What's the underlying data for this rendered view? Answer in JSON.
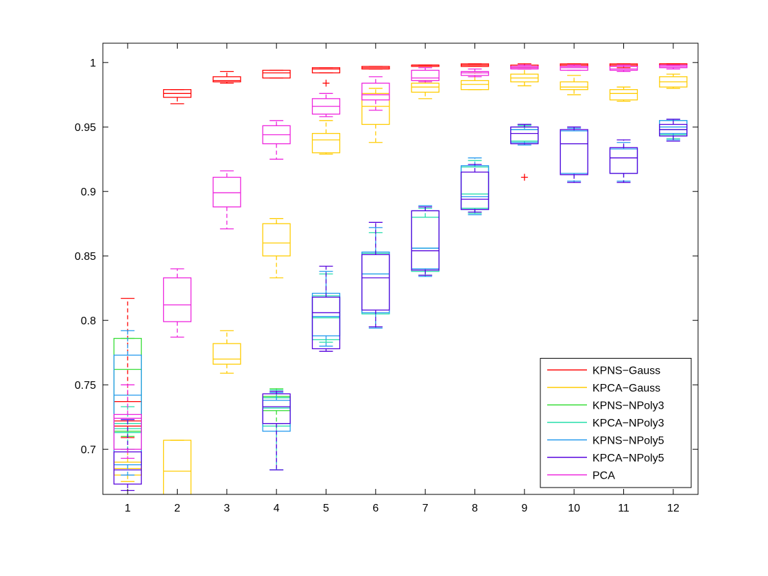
{
  "chart_data": {
    "type": "boxplot",
    "title": "",
    "xlabel": "",
    "ylabel": "",
    "categories": [
      "1",
      "2",
      "3",
      "4",
      "5",
      "6",
      "7",
      "8",
      "9",
      "10",
      "11",
      "12"
    ],
    "xlim": [
      0.5,
      12.5
    ],
    "ylim": [
      0.665,
      1.015
    ],
    "yticks": [
      0.7,
      0.75,
      0.8,
      0.85,
      0.9,
      0.95,
      1
    ],
    "ytick_labels": [
      "0.7",
      "0.75",
      "0.8",
      "0.85",
      "0.9",
      "0.95",
      "1"
    ],
    "grid": false,
    "legend_position": "bottom-right",
    "series": [
      {
        "name": "KPNS−Gauss",
        "color": "#ff0000",
        "boxes": [
          {
            "x": 1,
            "min": 0.709,
            "q1": 0.718,
            "median": 0.722,
            "q3": 0.737,
            "max": 0.817
          },
          {
            "x": 2,
            "min": 0.968,
            "q1": 0.973,
            "median": 0.976,
            "q3": 0.979,
            "max": 0.979
          },
          {
            "x": 3,
            "min": 0.984,
            "q1": 0.985,
            "median": 0.986,
            "q3": 0.989,
            "max": 0.993
          },
          {
            "x": 4,
            "min": 0.988,
            "q1": 0.988,
            "median": 0.992,
            "q3": 0.994,
            "max": 0.994
          },
          {
            "x": 5,
            "min": 0.992,
            "q1": 0.992,
            "median": 0.995,
            "q3": 0.996,
            "max": 0.996,
            "outliers": [
              0.984
            ]
          },
          {
            "x": 6,
            "min": 0.995,
            "q1": 0.995,
            "median": 0.996,
            "q3": 0.997,
            "max": 0.997
          },
          {
            "x": 7,
            "min": 0.997,
            "q1": 0.997,
            "median": 0.998,
            "q3": 0.998,
            "max": 0.998
          },
          {
            "x": 8,
            "min": 0.997,
            "q1": 0.997,
            "median": 0.998,
            "q3": 0.999,
            "max": 0.999
          },
          {
            "x": 9,
            "min": 0.996,
            "q1": 0.996,
            "median": 0.997,
            "q3": 0.998,
            "max": 0.999,
            "outliers": [
              0.911
            ]
          },
          {
            "x": 10,
            "min": 0.997,
            "q1": 0.997,
            "median": 0.998,
            "q3": 0.999,
            "max": 0.999
          },
          {
            "x": 11,
            "min": 0.996,
            "q1": 0.997,
            "median": 0.998,
            "q3": 0.999,
            "max": 0.999
          },
          {
            "x": 12,
            "min": 0.998,
            "q1": 0.998,
            "median": 0.999,
            "q3": 0.999,
            "max": 0.999
          }
        ]
      },
      {
        "name": "KPCA−Gauss",
        "color": "#ffcc00",
        "boxes": [
          {
            "x": 1,
            "min": 0.675,
            "q1": 0.68,
            "median": 0.685,
            "q3": 0.69,
            "max": 0.7
          },
          {
            "x": 2,
            "min": 0.66,
            "q1": 0.66,
            "median": 0.683,
            "q3": 0.707,
            "max": 0.707
          },
          {
            "x": 3,
            "min": 0.759,
            "q1": 0.766,
            "median": 0.77,
            "q3": 0.782,
            "max": 0.792
          },
          {
            "x": 4,
            "min": 0.833,
            "q1": 0.85,
            "median": 0.86,
            "q3": 0.875,
            "max": 0.879
          },
          {
            "x": 5,
            "min": 0.929,
            "q1": 0.93,
            "median": 0.94,
            "q3": 0.945,
            "max": 0.955
          },
          {
            "x": 6,
            "min": 0.938,
            "q1": 0.952,
            "median": 0.966,
            "q3": 0.976,
            "max": 0.98
          },
          {
            "x": 7,
            "min": 0.972,
            "q1": 0.977,
            "median": 0.981,
            "q3": 0.984,
            "max": 0.986
          },
          {
            "x": 8,
            "min": 0.979,
            "q1": 0.979,
            "median": 0.983,
            "q3": 0.986,
            "max": 0.992
          },
          {
            "x": 9,
            "min": 0.982,
            "q1": 0.985,
            "median": 0.988,
            "q3": 0.991,
            "max": 0.995
          },
          {
            "x": 10,
            "min": 0.975,
            "q1": 0.979,
            "median": 0.981,
            "q3": 0.985,
            "max": 0.99
          },
          {
            "x": 11,
            "min": 0.97,
            "q1": 0.971,
            "median": 0.976,
            "q3": 0.979,
            "max": 0.981
          },
          {
            "x": 12,
            "min": 0.98,
            "q1": 0.981,
            "median": 0.985,
            "q3": 0.989,
            "max": 0.991
          }
        ]
      },
      {
        "name": "KPNS−NPoly3",
        "color": "#33dd33",
        "boxes": [
          {
            "x": 1,
            "min": 0.71,
            "q1": 0.714,
            "median": 0.762,
            "q3": 0.786,
            "max": 0.786
          },
          {
            "x": 4,
            "min": 0.72,
            "q1": 0.73,
            "median": 0.74,
            "q3": 0.741,
            "max": 0.747
          }
        ]
      },
      {
        "name": "KPCA−NPoly3",
        "color": "#22ddaa",
        "boxes": [
          {
            "x": 1,
            "min": 0.7,
            "q1": 0.713,
            "median": 0.716,
            "q3": 0.72,
            "max": 0.733
          },
          {
            "x": 4,
            "min": 0.684,
            "q1": 0.718,
            "median": 0.732,
            "q3": 0.74,
            "max": 0.746
          },
          {
            "x": 5,
            "min": 0.783,
            "q1": 0.785,
            "median": 0.802,
            "q3": 0.819,
            "max": 0.836
          },
          {
            "x": 6,
            "min": 0.795,
            "q1": 0.805,
            "median": 0.836,
            "q3": 0.852,
            "max": 0.868
          },
          {
            "x": 7,
            "min": 0.835,
            "q1": 0.838,
            "median": 0.856,
            "q3": 0.88,
            "max": 0.887
          },
          {
            "x": 8,
            "min": 0.883,
            "q1": 0.887,
            "median": 0.898,
            "q3": 0.919,
            "max": 0.924
          },
          {
            "x": 9,
            "min": 0.937,
            "q1": 0.939,
            "median": 0.939,
            "q3": 0.948,
            "max": 0.951
          },
          {
            "x": 12,
            "min": 0.941,
            "q1": 0.944,
            "median": 0.948,
            "q3": 0.955,
            "max": 0.955
          }
        ]
      },
      {
        "name": "KPNS−NPoly5",
        "color": "#2299ee",
        "boxes": [
          {
            "x": 1,
            "min": 0.68,
            "q1": 0.688,
            "median": 0.742,
            "q3": 0.773,
            "max": 0.792
          },
          {
            "x": 4,
            "min": 0.684,
            "q1": 0.714,
            "median": 0.72,
            "q3": 0.738,
            "max": 0.744
          },
          {
            "x": 5,
            "min": 0.78,
            "q1": 0.788,
            "median": 0.803,
            "q3": 0.821,
            "max": 0.838
          },
          {
            "x": 6,
            "min": 0.794,
            "q1": 0.806,
            "median": 0.836,
            "q3": 0.853,
            "max": 0.872
          },
          {
            "x": 7,
            "min": 0.834,
            "q1": 0.84,
            "median": 0.856,
            "q3": 0.885,
            "max": 0.889
          },
          {
            "x": 8,
            "min": 0.882,
            "q1": 0.886,
            "median": 0.896,
            "q3": 0.92,
            "max": 0.926
          },
          {
            "x": 9,
            "min": 0.936,
            "q1": 0.938,
            "median": 0.948,
            "q3": 0.95,
            "max": 0.952
          },
          {
            "x": 10,
            "min": 0.908,
            "q1": 0.914,
            "median": 0.937,
            "q3": 0.947,
            "max": 0.949
          },
          {
            "x": 11,
            "min": 0.908,
            "q1": 0.914,
            "median": 0.926,
            "q3": 0.933,
            "max": 0.938
          },
          {
            "x": 12,
            "min": 0.94,
            "q1": 0.945,
            "median": 0.95,
            "q3": 0.955,
            "max": 0.956
          }
        ]
      },
      {
        "name": "KPCA−NPoly5",
        "color": "#5500dd",
        "boxes": [
          {
            "x": 1,
            "min": 0.668,
            "q1": 0.673,
            "median": 0.684,
            "q3": 0.698,
            "max": 0.723
          },
          {
            "x": 4,
            "min": 0.684,
            "q1": 0.72,
            "median": 0.733,
            "q3": 0.743,
            "max": 0.745
          },
          {
            "x": 5,
            "min": 0.776,
            "q1": 0.778,
            "median": 0.806,
            "q3": 0.818,
            "max": 0.842
          },
          {
            "x": 6,
            "min": 0.795,
            "q1": 0.808,
            "median": 0.833,
            "q3": 0.851,
            "max": 0.876
          },
          {
            "x": 7,
            "min": 0.835,
            "q1": 0.839,
            "median": 0.854,
            "q3": 0.885,
            "max": 0.888
          },
          {
            "x": 8,
            "min": 0.884,
            "q1": 0.886,
            "median": 0.894,
            "q3": 0.915,
            "max": 0.921
          },
          {
            "x": 9,
            "min": 0.937,
            "q1": 0.937,
            "median": 0.945,
            "q3": 0.95,
            "max": 0.952
          },
          {
            "x": 10,
            "min": 0.907,
            "q1": 0.913,
            "median": 0.937,
            "q3": 0.948,
            "max": 0.95
          },
          {
            "x": 11,
            "min": 0.907,
            "q1": 0.914,
            "median": 0.926,
            "q3": 0.934,
            "max": 0.94
          },
          {
            "x": 12,
            "min": 0.939,
            "q1": 0.943,
            "median": 0.948,
            "q3": 0.952,
            "max": 0.956
          }
        ]
      },
      {
        "name": "PCA",
        "color": "#ee22dd",
        "boxes": [
          {
            "x": 1,
            "min": 0.693,
            "q1": 0.7,
            "median": 0.724,
            "q3": 0.727,
            "max": 0.75
          },
          {
            "x": 2,
            "min": 0.787,
            "q1": 0.799,
            "median": 0.812,
            "q3": 0.833,
            "max": 0.84
          },
          {
            "x": 3,
            "min": 0.871,
            "q1": 0.888,
            "median": 0.899,
            "q3": 0.911,
            "max": 0.916
          },
          {
            "x": 4,
            "min": 0.925,
            "q1": 0.937,
            "median": 0.944,
            "q3": 0.951,
            "max": 0.955
          },
          {
            "x": 5,
            "min": 0.958,
            "q1": 0.96,
            "median": 0.966,
            "q3": 0.972,
            "max": 0.976
          },
          {
            "x": 6,
            "min": 0.963,
            "q1": 0.971,
            "median": 0.975,
            "q3": 0.984,
            "max": 0.989
          },
          {
            "x": 7,
            "min": 0.985,
            "q1": 0.986,
            "median": 0.988,
            "q3": 0.994,
            "max": 0.996
          },
          {
            "x": 8,
            "min": 0.989,
            "q1": 0.99,
            "median": 0.992,
            "q3": 0.993,
            "max": 0.995
          },
          {
            "x": 9,
            "min": 0.995,
            "q1": 0.995,
            "median": 0.996,
            "q3": 0.997,
            "max": 0.998
          },
          {
            "x": 10,
            "min": 0.994,
            "q1": 0.994,
            "median": 0.996,
            "q3": 0.997,
            "max": 0.998
          },
          {
            "x": 11,
            "min": 0.993,
            "q1": 0.994,
            "median": 0.995,
            "q3": 0.997,
            "max": 0.998
          },
          {
            "x": 12,
            "min": 0.995,
            "q1": 0.996,
            "median": 0.997,
            "q3": 0.998,
            "max": 0.998
          }
        ]
      }
    ]
  }
}
